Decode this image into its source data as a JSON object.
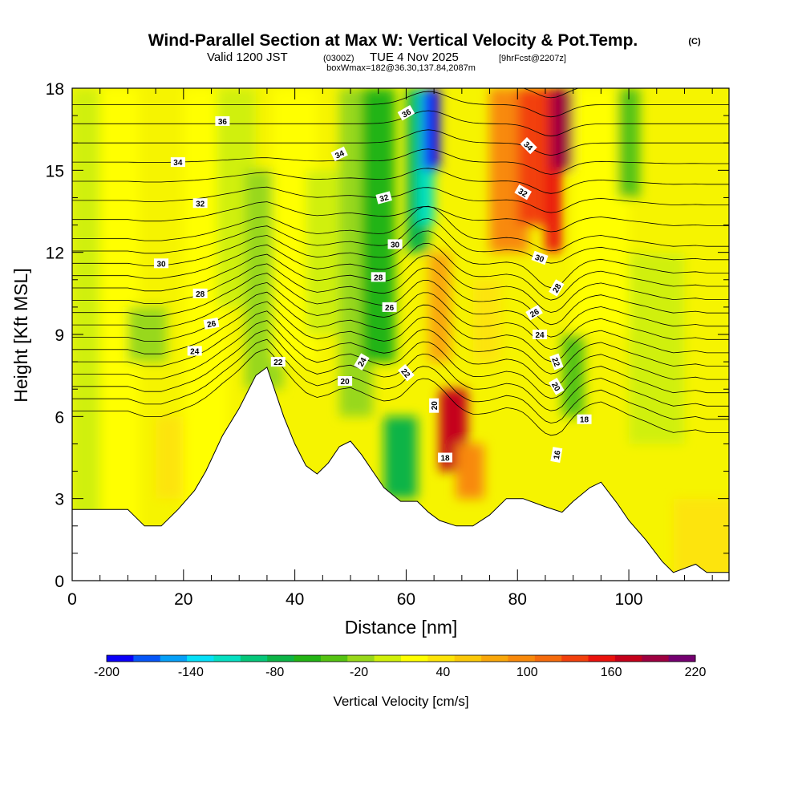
{
  "title": {
    "main": "Wind-Parallel Section at Max W: Vertical Velocity & Pot.Temp.",
    "copyright": "(C)",
    "valid_prefix": "Valid 1200 JST",
    "valid_utc": "(0300Z)",
    "valid_date": "TUE 4 Nov 2025",
    "forecast": "[9hrFcst@2207z]",
    "box_info": "boxWmax=182@36.30,137.84,2087m"
  },
  "chart_data": {
    "type": "heatmap",
    "title": "Wind-Parallel Section at Max W: Vertical Velocity & Pot.Temp.",
    "xlabel": "Distance [nm]",
    "ylabel": "Height [Kft MSL]",
    "xlim": [
      0,
      118
    ],
    "ylim": [
      0,
      18
    ],
    "x_ticks": [
      0,
      20,
      40,
      60,
      80,
      100
    ],
    "y_ticks": [
      0,
      3,
      6,
      9,
      12,
      15,
      18
    ],
    "terrain_profile": [
      [
        0,
        2.6
      ],
      [
        10,
        2.6
      ],
      [
        13,
        2.0
      ],
      [
        16,
        2.0
      ],
      [
        19,
        2.6
      ],
      [
        22,
        3.3
      ],
      [
        24,
        4.0
      ],
      [
        27,
        5.3
      ],
      [
        30,
        6.3
      ],
      [
        33,
        7.5
      ],
      [
        35,
        7.8
      ],
      [
        38,
        6.0
      ],
      [
        40,
        5.0
      ],
      [
        42,
        4.2
      ],
      [
        44,
        3.9
      ],
      [
        46,
        4.3
      ],
      [
        48,
        4.9
      ],
      [
        50,
        5.1
      ],
      [
        52,
        4.6
      ],
      [
        54,
        4.0
      ],
      [
        56,
        3.4
      ],
      [
        59,
        2.9
      ],
      [
        62,
        2.9
      ],
      [
        64,
        2.5
      ],
      [
        66,
        2.2
      ],
      [
        69,
        2.0
      ],
      [
        72,
        2.0
      ],
      [
        75,
        2.4
      ],
      [
        78,
        3.0
      ],
      [
        81,
        3.0
      ],
      [
        85,
        2.7
      ],
      [
        88,
        2.5
      ],
      [
        90,
        2.9
      ],
      [
        93,
        3.4
      ],
      [
        95,
        3.6
      ],
      [
        98,
        2.8
      ],
      [
        100,
        2.2
      ],
      [
        103,
        1.5
      ],
      [
        106,
        0.7
      ],
      [
        108,
        0.3
      ],
      [
        112,
        0.6
      ],
      [
        114,
        0.3
      ],
      [
        118,
        0.3
      ]
    ],
    "vertical_velocity_cells": [
      {
        "x": 0,
        "y0": 0,
        "y1": 18,
        "w": 0
      },
      {
        "x": 5,
        "y0": 0,
        "y1": 18,
        "w": 20
      },
      {
        "x": 10,
        "y0": 8,
        "y1": 10,
        "w": -20
      },
      {
        "x": 15,
        "y0": 3,
        "y1": 6,
        "w": 40
      },
      {
        "x": 20,
        "y0": 0,
        "y1": 18,
        "w": 20
      },
      {
        "x": 26,
        "y0": 10,
        "y1": 18,
        "w": 0
      },
      {
        "x": 31,
        "y0": 7,
        "y1": 15,
        "w": -20
      },
      {
        "x": 36,
        "y0": 8,
        "y1": 18,
        "w": 20
      },
      {
        "x": 42,
        "y0": 9,
        "y1": 15,
        "w": 0
      },
      {
        "x": 48,
        "y0": 6,
        "y1": 18,
        "w": -20
      },
      {
        "x": 52,
        "y0": 8,
        "y1": 18,
        "w": -60
      },
      {
        "x": 56,
        "y0": 3,
        "y1": 6,
        "w": -80
      },
      {
        "x": 60,
        "y0": 12,
        "y1": 18,
        "w": -80
      },
      {
        "x": 62,
        "y0": 13,
        "y1": 18,
        "w": -120
      },
      {
        "x": 63,
        "y0": 15,
        "y1": 18,
        "w": -200
      },
      {
        "x": 64,
        "y0": 8,
        "y1": 12,
        "w": 80
      },
      {
        "x": 66,
        "y0": 4,
        "y1": 7,
        "w": 180
      },
      {
        "x": 69,
        "y0": 3,
        "y1": 5,
        "w": 100
      },
      {
        "x": 72,
        "y0": 8,
        "y1": 11,
        "w": 40
      },
      {
        "x": 75,
        "y0": 12,
        "y1": 18,
        "w": 100
      },
      {
        "x": 80,
        "y0": 13,
        "y1": 18,
        "w": 140
      },
      {
        "x": 85,
        "y0": 12,
        "y1": 18,
        "w": 160
      },
      {
        "x": 86,
        "y0": 15,
        "y1": 18,
        "w": 200
      },
      {
        "x": 88,
        "y0": 6,
        "y1": 9,
        "w": -40
      },
      {
        "x": 90,
        "y0": 9,
        "y1": 18,
        "w": 20
      },
      {
        "x": 98,
        "y0": 14,
        "y1": 18,
        "w": -40
      },
      {
        "x": 100,
        "y0": 5,
        "y1": 12,
        "w": 0
      },
      {
        "x": 108,
        "y0": 0,
        "y1": 3,
        "w": 40
      }
    ],
    "isentrope_labels": [
      {
        "text": "36",
        "x": 60,
        "y": 17.1,
        "rot": -30
      },
      {
        "text": "36",
        "x": 27,
        "y": 16.8,
        "rot": 0
      },
      {
        "text": "34",
        "x": 19,
        "y": 15.3,
        "rot": 0
      },
      {
        "text": "34",
        "x": 48,
        "y": 15.6,
        "rot": -25
      },
      {
        "text": "34",
        "x": 82,
        "y": 15.9,
        "rot": 45
      },
      {
        "text": "32",
        "x": 23,
        "y": 13.8,
        "rot": 0
      },
      {
        "text": "32",
        "x": 56,
        "y": 14.0,
        "rot": -15
      },
      {
        "text": "32",
        "x": 81,
        "y": 14.2,
        "rot": 30
      },
      {
        "text": "30",
        "x": 16,
        "y": 11.6,
        "rot": 0
      },
      {
        "text": "30",
        "x": 58,
        "y": 12.3,
        "rot": 0
      },
      {
        "text": "30",
        "x": 84,
        "y": 11.8,
        "rot": 20
      },
      {
        "text": "28",
        "x": 23,
        "y": 10.5,
        "rot": 0
      },
      {
        "text": "28",
        "x": 55,
        "y": 11.1,
        "rot": 0
      },
      {
        "text": "28",
        "x": 87,
        "y": 10.7,
        "rot": -60
      },
      {
        "text": "26",
        "x": 25,
        "y": 9.4,
        "rot": -10
      },
      {
        "text": "26",
        "x": 57,
        "y": 10.0,
        "rot": 0
      },
      {
        "text": "26",
        "x": 83,
        "y": 9.8,
        "rot": -30
      },
      {
        "text": "24",
        "x": 22,
        "y": 8.4,
        "rot": 0
      },
      {
        "text": "24",
        "x": 52,
        "y": 8.0,
        "rot": -60
      },
      {
        "text": "24",
        "x": 84,
        "y": 9.0,
        "rot": 0
      },
      {
        "text": "22",
        "x": 37,
        "y": 8.0,
        "rot": 0
      },
      {
        "text": "22",
        "x": 60,
        "y": 7.6,
        "rot": 50
      },
      {
        "text": "22",
        "x": 87,
        "y": 8.0,
        "rot": 70
      },
      {
        "text": "20",
        "x": 49,
        "y": 7.3,
        "rot": 0
      },
      {
        "text": "20",
        "x": 65,
        "y": 6.4,
        "rot": -90
      },
      {
        "text": "20",
        "x": 87,
        "y": 7.1,
        "rot": 60
      },
      {
        "text": "18",
        "x": 67,
        "y": 4.5,
        "rot": 0
      },
      {
        "text": "18",
        "x": 92,
        "y": 5.9,
        "rot": 0
      },
      {
        "text": "16",
        "x": 87,
        "y": 4.6,
        "rot": -80
      }
    ],
    "colorbar": {
      "label": "Vertical Velocity [cm/s]",
      "min": -200,
      "max": 220,
      "step": 20,
      "tick_labels": [
        "-200",
        "-140",
        "-80",
        "-20",
        "40",
        "100",
        "160",
        "220"
      ],
      "colors": [
        "#0b00f8",
        "#0656f8",
        "#06a0f8",
        "#06e0f8",
        "#06e0c2",
        "#05c77a",
        "#0cb446",
        "#23b415",
        "#55c312",
        "#98d81a",
        "#d0f009",
        "#ffff00",
        "#fde407",
        "#fbc808",
        "#f9a70a",
        "#f8890b",
        "#f56b0c",
        "#f2400c",
        "#ea120c",
        "#c4001a",
        "#9e0040",
        "#740070",
        "#55007a"
      ]
    }
  }
}
